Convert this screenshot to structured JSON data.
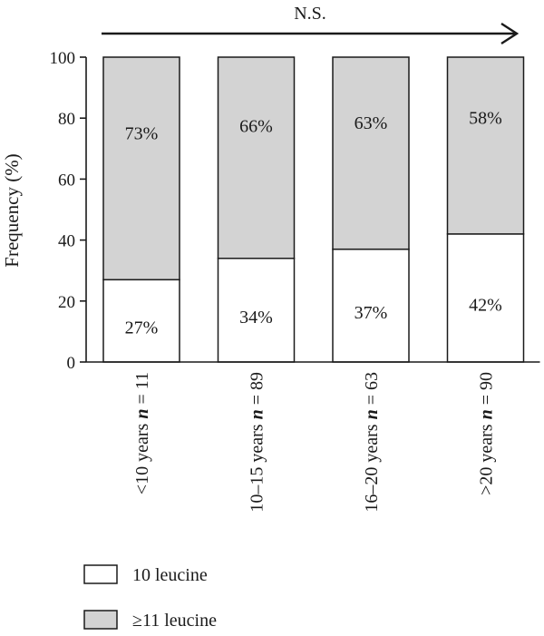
{
  "chart_data": {
    "type": "bar",
    "stacked": true,
    "ylabel": "Frequency (%)",
    "ylim": [
      0,
      100
    ],
    "yticks": [
      0,
      20,
      40,
      60,
      80,
      100
    ],
    "categories": [
      {
        "text": "<10 years ",
        "n": "n",
        "suffix": " = 11"
      },
      {
        "text": "10–15 years ",
        "n": "n",
        "suffix": " = 89"
      },
      {
        "text": "16–20 years ",
        "n": "n",
        "suffix": " = 63"
      },
      {
        "text": ">20 years ",
        "n": "n",
        "suffix": " = 90"
      }
    ],
    "series": [
      {
        "name": "10 leucine",
        "color": "#ffffff",
        "values": [
          27,
          34,
          37,
          42
        ],
        "labels": [
          "27%",
          "34%",
          "37%",
          "42%"
        ]
      },
      {
        "name": "≥11 leucine",
        "color": "#d3d3d3",
        "values": [
          73,
          66,
          63,
          58
        ],
        "labels": [
          "73%",
          "66%",
          "63%",
          "58%"
        ]
      }
    ],
    "annotation": "N.S.",
    "legend_position": "bottom-left",
    "grid": false
  }
}
